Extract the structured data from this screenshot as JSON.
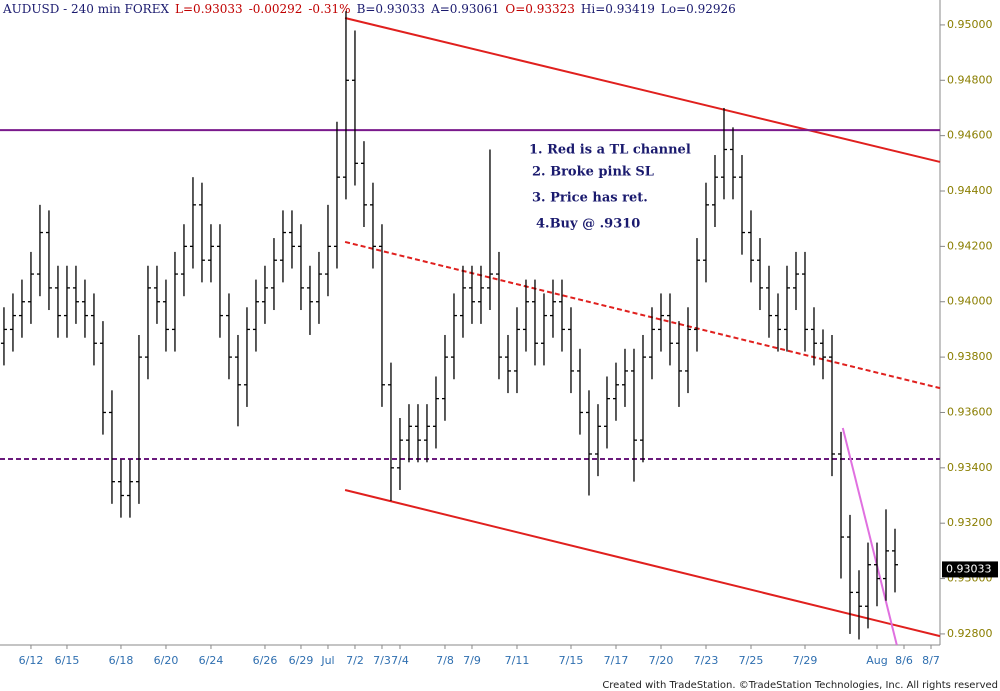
{
  "chart_data": {
    "type": "ohlc",
    "header": [
      "AUDUSD - 240 min  FOREX",
      "L=0.93033",
      "-0.00292",
      "-0.31%",
      "B=0.93033",
      "A=0.93061",
      "O=0.93323",
      "Hi=0.93419",
      "Lo=0.92926"
    ],
    "annotations": [
      "1. Red is a TL  channel",
      "2. Broke pink SL",
      "3. Price has ret.",
      "4.Buy @  .9310"
    ],
    "footer": "Created with TradeStation. ©TradeStation Technologies, Inc. All rights reserved",
    "color": "#000000",
    "last_price": 0.93033,
    "open": [
      0.9385,
      0.939,
      0.9395,
      0.94,
      0.941,
      0.9425,
      0.9405,
      0.9395,
      0.9405,
      0.94,
      0.9395,
      0.9385,
      0.936,
      0.9335,
      0.933,
      0.9335,
      0.938,
      0.9405,
      0.94,
      0.939,
      0.941,
      0.942,
      0.9435,
      0.9415,
      0.942,
      0.9395,
      0.938,
      0.937,
      0.939,
      0.94,
      0.9405,
      0.9415,
      0.9425,
      0.942,
      0.9405,
      0.94,
      0.941,
      0.942,
      0.9445,
      0.948,
      0.945,
      0.9435,
      0.942,
      0.937,
      0.934,
      0.935,
      0.9355,
      0.935,
      0.9355,
      0.9365,
      0.938,
      0.9395,
      0.9405,
      0.94,
      0.9405,
      0.941,
      0.938,
      0.9375,
      0.939,
      0.94,
      0.9385,
      0.9395,
      0.94,
      0.939,
      0.9375,
      0.936,
      0.9345,
      0.9355,
      0.9365,
      0.937,
      0.9375,
      0.935,
      0.938,
      0.939,
      0.9395,
      0.9385,
      0.9375,
      0.939,
      0.9415,
      0.9435,
      0.9445,
      0.9455,
      0.9445,
      0.9425,
      0.9415,
      0.9405,
      0.9395,
      0.939,
      0.9405,
      0.941,
      0.939,
      0.9385,
      0.938,
      0.9345,
      0.9315,
      0.9295,
      0.929,
      0.9305,
      0.93,
      0.931
    ],
    "high": [
      0.9398,
      0.9403,
      0.9408,
      0.9418,
      0.9435,
      0.9433,
      0.9413,
      0.9413,
      0.9413,
      0.9408,
      0.9403,
      0.9393,
      0.9368,
      0.9343,
      0.9343,
      0.9388,
      0.9413,
      0.9413,
      0.9408,
      0.9418,
      0.9428,
      0.9445,
      0.9443,
      0.9428,
      0.9428,
      0.9403,
      0.9388,
      0.9398,
      0.9408,
      0.9413,
      0.9423,
      0.9433,
      0.9433,
      0.9428,
      0.9413,
      0.9418,
      0.9435,
      0.9465,
      0.9505,
      0.9498,
      0.9458,
      0.9443,
      0.9428,
      0.9378,
      0.9358,
      0.9363,
      0.9363,
      0.9363,
      0.9373,
      0.9388,
      0.9403,
      0.9413,
      0.9413,
      0.9413,
      0.9455,
      0.9418,
      0.9388,
      0.9398,
      0.9408,
      0.9408,
      0.9403,
      0.9408,
      0.9408,
      0.9398,
      0.9383,
      0.9368,
      0.9363,
      0.9373,
      0.9378,
      0.9383,
      0.9383,
      0.9388,
      0.9398,
      0.9403,
      0.9403,
      0.9393,
      0.9398,
      0.9423,
      0.9443,
      0.9453,
      0.947,
      0.9463,
      0.9453,
      0.9433,
      0.9423,
      0.9413,
      0.9403,
      0.9413,
      0.9418,
      0.9418,
      0.9398,
      0.939,
      0.9388,
      0.9353,
      0.9323,
      0.9303,
      0.9313,
      0.9313,
      0.9325,
      0.9318
    ],
    "low": [
      0.9377,
      0.9382,
      0.9387,
      0.9392,
      0.9402,
      0.9397,
      0.9387,
      0.9387,
      0.9392,
      0.9387,
      0.9377,
      0.9352,
      0.9327,
      0.9322,
      0.9322,
      0.9327,
      0.9372,
      0.9392,
      0.9382,
      0.9382,
      0.9402,
      0.9412,
      0.9407,
      0.9407,
      0.9387,
      0.9372,
      0.9355,
      0.9362,
      0.9382,
      0.9392,
      0.9397,
      0.9407,
      0.9412,
      0.9397,
      0.9388,
      0.9392,
      0.9402,
      0.9412,
      0.9437,
      0.9442,
      0.9427,
      0.9412,
      0.9362,
      0.9328,
      0.9332,
      0.9342,
      0.9342,
      0.9342,
      0.9347,
      0.9357,
      0.9372,
      0.9387,
      0.9392,
      0.9392,
      0.9397,
      0.9372,
      0.9367,
      0.9367,
      0.9382,
      0.9377,
      0.9377,
      0.9387,
      0.9382,
      0.9367,
      0.9352,
      0.933,
      0.9337,
      0.9347,
      0.9357,
      0.9362,
      0.9335,
      0.9342,
      0.9372,
      0.9382,
      0.9377,
      0.9362,
      0.9367,
      0.9382,
      0.9407,
      0.9427,
      0.9437,
      0.9437,
      0.9417,
      0.9407,
      0.9397,
      0.9387,
      0.9382,
      0.9382,
      0.9397,
      0.9382,
      0.9377,
      0.9372,
      0.9337,
      0.93,
      0.928,
      0.9278,
      0.9282,
      0.929,
      0.9292,
      0.9295
    ],
    "close": [
      0.939,
      0.9395,
      0.94,
      0.941,
      0.9425,
      0.9405,
      0.9395,
      0.9405,
      0.94,
      0.9395,
      0.9385,
      0.936,
      0.9335,
      0.933,
      0.9335,
      0.938,
      0.9405,
      0.94,
      0.939,
      0.941,
      0.942,
      0.9435,
      0.9415,
      0.942,
      0.9395,
      0.938,
      0.937,
      0.939,
      0.94,
      0.9405,
      0.9415,
      0.9425,
      0.942,
      0.9405,
      0.94,
      0.941,
      0.942,
      0.9445,
      0.948,
      0.945,
      0.9435,
      0.942,
      0.937,
      0.934,
      0.935,
      0.9355,
      0.935,
      0.9355,
      0.9365,
      0.938,
      0.9395,
      0.9405,
      0.94,
      0.9405,
      0.941,
      0.938,
      0.9375,
      0.939,
      0.94,
      0.9385,
      0.9395,
      0.94,
      0.939,
      0.9375,
      0.936,
      0.9345,
      0.9355,
      0.9365,
      0.937,
      0.9375,
      0.935,
      0.938,
      0.939,
      0.9395,
      0.9385,
      0.9375,
      0.939,
      0.9415,
      0.9435,
      0.9445,
      0.9455,
      0.9445,
      0.9425,
      0.9415,
      0.9405,
      0.9395,
      0.939,
      0.9405,
      0.941,
      0.939,
      0.9385,
      0.938,
      0.9345,
      0.9315,
      0.9295,
      0.929,
      0.9305,
      0.93,
      0.931,
      0.9305
    ],
    "xlim": [
      -0.44,
      104
    ],
    "ylim": [
      0.9276,
      0.9509
    ],
    "yticks": [
      {
        "value": 0.928,
        "label": "0.92800"
      },
      {
        "value": 0.93,
        "label": "0.93000"
      },
      {
        "value": 0.932,
        "label": "0.93200"
      },
      {
        "value": 0.934,
        "label": "0.93400"
      },
      {
        "value": 0.936,
        "label": "0.93600"
      },
      {
        "value": 0.938,
        "label": "0.93800"
      },
      {
        "value": 0.94,
        "label": "0.94000"
      },
      {
        "value": 0.942,
        "label": "0.94200"
      },
      {
        "value": 0.944,
        "label": "0.94400"
      },
      {
        "value": 0.946,
        "label": "0.94600"
      },
      {
        "value": 0.948,
        "label": "0.94800"
      },
      {
        "value": 0.95,
        "label": "0.95000"
      }
    ],
    "xticks": [
      {
        "value": 3,
        "label": "6/12"
      },
      {
        "value": 7,
        "label": "6/15"
      },
      {
        "value": 13,
        "label": "6/18"
      },
      {
        "value": 18,
        "label": "6/20"
      },
      {
        "value": 23,
        "label": "6/24"
      },
      {
        "value": 29,
        "label": "6/26"
      },
      {
        "value": 33,
        "label": "6/29"
      },
      {
        "value": 36,
        "label": "Jul"
      },
      {
        "value": 39,
        "label": "7/2"
      },
      {
        "value": 42,
        "label": "7/3"
      },
      {
        "value": 44,
        "label": "7/4"
      },
      {
        "value": 49,
        "label": "7/8"
      },
      {
        "value": 52,
        "label": "7/9"
      },
      {
        "value": 57,
        "label": "7/11"
      },
      {
        "value": 63,
        "label": "7/15"
      },
      {
        "value": 68,
        "label": "7/17"
      },
      {
        "value": 73,
        "label": "7/20"
      },
      {
        "value": 78,
        "label": "7/23"
      },
      {
        "value": 83,
        "label": "7/25"
      },
      {
        "value": 89,
        "label": "7/29"
      },
      {
        "value": 97,
        "label": "Aug"
      },
      {
        "value": 100,
        "label": "8/6"
      },
      {
        "value": 103,
        "label": "8/7"
      }
    ],
    "grid": false,
    "lines": [
      {
        "points": [
          [
            37.9,
            0.95025
          ],
          [
            104,
            0.94505
          ]
        ],
        "color": "#e0201e",
        "style": "solid"
      },
      {
        "points": [
          [
            37.9,
            0.94216
          ],
          [
            104,
            0.93688
          ]
        ],
        "color": "#e0201e",
        "style": "dashed"
      },
      {
        "points": [
          [
            37.9,
            0.9332
          ],
          [
            104,
            0.92792
          ]
        ],
        "color": "#e0201e",
        "style": "solid"
      },
      {
        "points": [
          [
            -0.44,
            0.9462
          ],
          [
            104,
            0.9462
          ]
        ],
        "color": "#7a1a8c",
        "style": "solid"
      },
      {
        "points": [
          [
            -0.44,
            0.93432
          ],
          [
            104,
            0.93432
          ]
        ],
        "color": "#6a1a7c",
        "style": "dashed"
      },
      {
        "points": [
          [
            93.2,
            0.93544
          ],
          [
            99.2,
            0.9276
          ]
        ],
        "color": "#e070e0",
        "style": "solid"
      }
    ]
  }
}
